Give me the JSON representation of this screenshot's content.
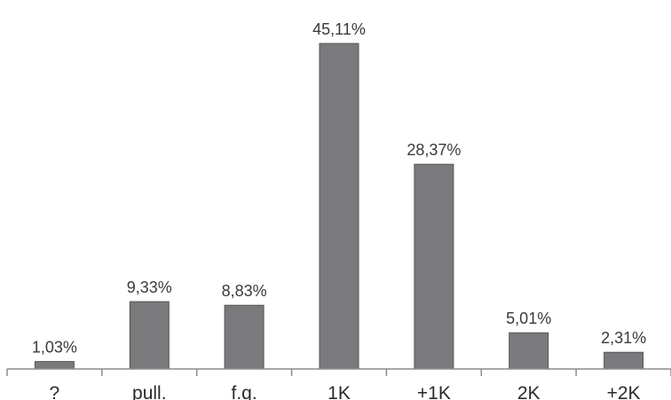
{
  "chart_data": {
    "type": "bar",
    "categories": [
      "?",
      "pull.",
      "f.q.",
      "1K",
      "+1K",
      "2K",
      "+2K"
    ],
    "values": [
      1.03,
      9.33,
      8.83,
      45.11,
      28.37,
      5.01,
      2.31
    ],
    "data_labels": [
      "1,03%",
      "9,33%",
      "8,83%",
      "45,11%",
      "28,37%",
      "5,01%",
      "2,31%"
    ],
    "title": "",
    "xlabel": "",
    "ylabel": "",
    "ylim": [
      0,
      50
    ],
    "grid": false,
    "legend": "none",
    "colors": {
      "bar": "#7a7a7c",
      "bar_border": "#555557",
      "axis": "#8c8c8c"
    }
  }
}
